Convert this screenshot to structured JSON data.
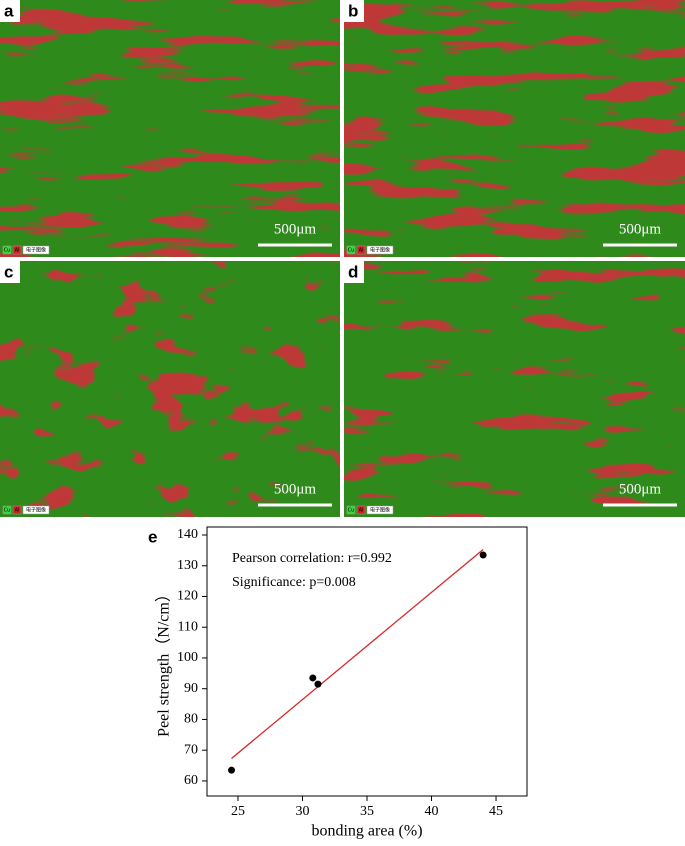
{
  "panels": [
    {
      "label": "a",
      "scale_bar": "500μm",
      "legend": [
        "Cu",
        "Al",
        "电子图像"
      ]
    },
    {
      "label": "b",
      "scale_bar": "500μm",
      "legend": [
        "Cu",
        "Al",
        "电子图像"
      ]
    },
    {
      "label": "c",
      "scale_bar": "500μm",
      "legend": [
        "Cu",
        "Al",
        "电子图像"
      ]
    },
    {
      "label": "d",
      "scale_bar": "500μm",
      "legend": [
        "Cu",
        "Al",
        "电子图像"
      ]
    }
  ],
  "chart_data": {
    "type": "scatter",
    "panel_label": "e",
    "x_label": "bonding area (%)",
    "y_label": "Peel strength（N/cm）",
    "annotations": [
      "Pearson correlation: r=0.992",
      "Significance: p=0.008"
    ],
    "x": [
      24.5,
      30.8,
      31.2,
      44
    ],
    "values": [
      63.5,
      93.5,
      91.5,
      133.5
    ],
    "color": "#000000",
    "fit": {
      "x": [
        24.5,
        44
      ],
      "values": [
        67.3,
        135.3
      ],
      "color": "#d62728"
    },
    "xlim": [
      22.6,
      47.4
    ],
    "xticks": [
      25,
      30,
      35,
      40,
      45
    ],
    "ylim": [
      55.1,
      142.6
    ],
    "yticks": [
      60,
      70,
      80,
      90,
      100,
      110,
      120,
      130,
      140
    ]
  }
}
